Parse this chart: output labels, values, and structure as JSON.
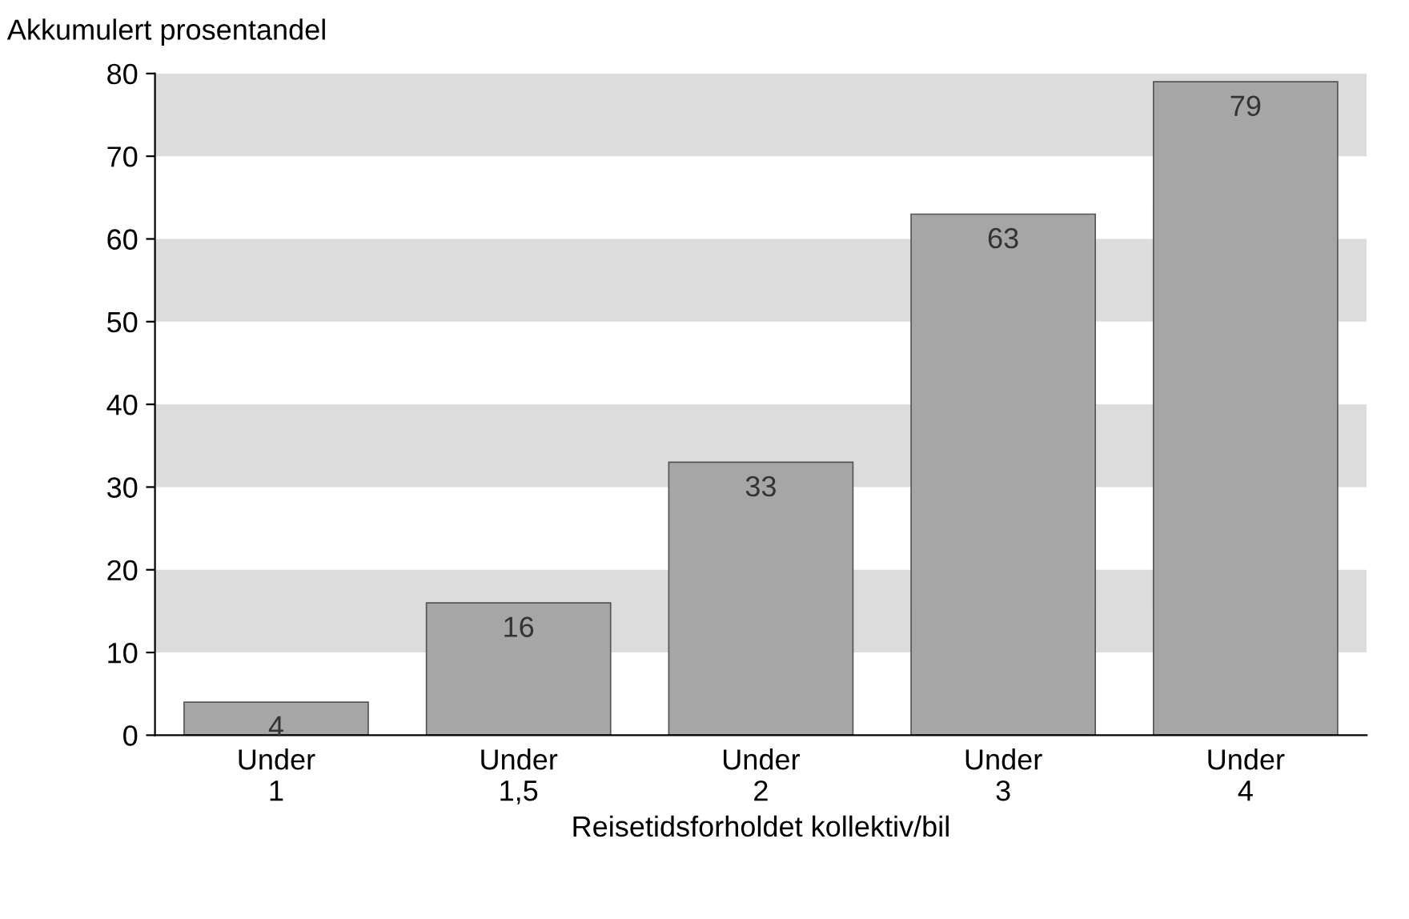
{
  "chart_data": {
    "type": "bar",
    "ylabel": "Akkumulert prosentandel",
    "xlabel": "Reisetidsforholdet kollektiv/bil",
    "categories": [
      "Under\n1",
      "Under\n1,5",
      "Under\n2",
      "Under\n3",
      "Under\n4"
    ],
    "values": [
      4,
      16,
      33,
      63,
      79
    ],
    "color": "#a6a6a6",
    "data_labels": true,
    "ylim": [
      0,
      80
    ],
    "yticks": [
      0,
      10,
      20,
      30,
      40,
      50,
      60,
      70,
      80
    ],
    "grid": false,
    "legend": false,
    "bands": [
      {
        "axis": "y",
        "from": 10,
        "to": 20,
        "color": "#dcdcdc"
      },
      {
        "axis": "y",
        "from": 30,
        "to": 40,
        "color": "#dcdcdc"
      },
      {
        "axis": "y",
        "from": 50,
        "to": 60,
        "color": "#dcdcdc"
      },
      {
        "axis": "y",
        "from": 70,
        "to": 80,
        "color": "#dcdcdc"
      }
    ]
  }
}
